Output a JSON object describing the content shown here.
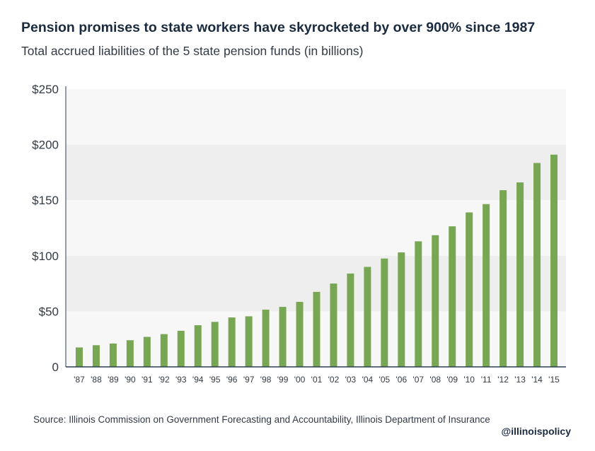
{
  "header": {
    "title": "Pension promises to state workers have skyrocketed by over 900% since 1987",
    "subtitle": "Total accrued liabilities of the 5 state pension funds (in billions)"
  },
  "footer": {
    "source": "Source: Illinois Commission on Government Forecasting and Accountability, Illinois Department of Insurance",
    "handle": "@illinoispolicy"
  },
  "colors": {
    "bar": "#78a753",
    "band_shaded": "#eeeeee",
    "band_light": "#f7f7f7",
    "axis": "#2c3e50"
  },
  "chart_data": {
    "type": "bar",
    "title": "Pension promises to state workers have skyrocketed by over 900% since 1987",
    "subtitle": "Total accrued liabilities of the 5 state pension funds (in billions)",
    "xlabel": "",
    "ylabel": "",
    "ylim": [
      0,
      250
    ],
    "yticks": [
      0,
      50,
      100,
      150,
      200,
      250
    ],
    "ytick_labels": [
      "0",
      "$50",
      "$100",
      "$150",
      "$200",
      "$250"
    ],
    "categories": [
      "'87",
      "'88",
      "'89",
      "'90",
      "'91",
      "'92",
      "'93",
      "'94",
      "'95",
      "'96",
      "'97",
      "'98",
      "'99",
      "'00",
      "'01",
      "'02",
      "'03",
      "'04",
      "'05",
      "'06",
      "'07",
      "'08",
      "'09",
      "'10",
      "'11",
      "'12",
      "'13",
      "'14",
      "'15"
    ],
    "values": [
      17.5,
      19.5,
      21,
      24,
      27,
      29.5,
      32.5,
      37.5,
      40.5,
      44.5,
      45.5,
      51.5,
      54,
      58.5,
      67.5,
      75,
      84,
      90,
      97.5,
      103,
      113,
      118.5,
      126.5,
      139,
      146.5,
      159,
      166,
      183.5,
      191
    ],
    "grid": "horizontal bands",
    "legend": "none"
  }
}
